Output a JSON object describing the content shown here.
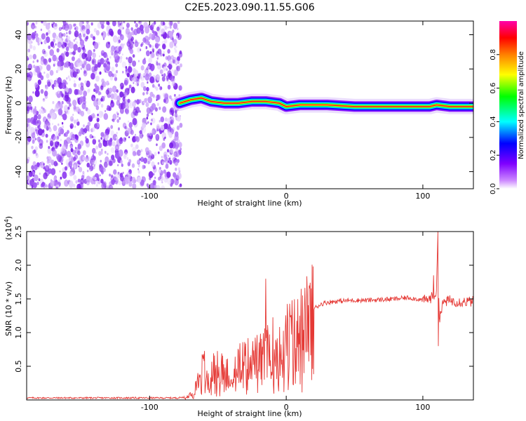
{
  "title": "C2E5.2023.090.11.55.G06",
  "colors": {
    "snr_line": "#e53935",
    "axis": "#000000",
    "noise_scatter": "#8a2be2"
  },
  "chart_data": [
    {
      "type": "heatmap",
      "xlabel": "Height of straight line (km)",
      "ylabel": "Frequency (Hz)",
      "xlim": [
        -190,
        137
      ],
      "ylim": [
        -50,
        48
      ],
      "xticks": [
        -100,
        0,
        100
      ],
      "xtick_labels": [
        "-100",
        "0",
        "100"
      ],
      "yticks": [
        -40,
        -20,
        0,
        20,
        40
      ],
      "ytick_labels": [
        "-40",
        "-20",
        "0",
        "20",
        "40"
      ],
      "noise_region_x": [
        -190,
        -77
      ],
      "signal_track": {
        "x": [
          -78,
          -70,
          -62,
          -55,
          -45,
          -35,
          -25,
          -15,
          -5,
          0,
          10,
          20,
          30,
          50,
          70,
          90,
          105,
          110,
          120,
          137
        ],
        "frequency": [
          0,
          2,
          3,
          1,
          0,
          0,
          1,
          1,
          0,
          -2,
          -1,
          -1,
          -1,
          -2,
          -2,
          -2,
          -2,
          -1,
          -2,
          -2
        ]
      },
      "colorbar": {
        "label": "Normalized spectral amplitude",
        "range": [
          0,
          1
        ],
        "ticks": [
          0.0,
          0.2,
          0.4,
          0.6,
          0.8
        ],
        "tick_labels": [
          "0.0",
          "0.2",
          "0.4",
          "0.6",
          "0.8"
        ],
        "colormap": "hsv"
      }
    },
    {
      "type": "line",
      "xlabel": "Height of straight line (km)",
      "ylabel": "SNR (10 * v/v)",
      "scale_label": "(x10",
      "scale_exponent": "4",
      "xlim": [
        -190,
        137
      ],
      "ylim": [
        0,
        2.5
      ],
      "xticks": [
        -100,
        0,
        100
      ],
      "xtick_labels": [
        "-100",
        "0",
        "100"
      ],
      "yticks": [
        0.5,
        1.0,
        1.5,
        2.0,
        2.5
      ],
      "ytick_labels": [
        "0.5",
        "1.0",
        "1.5",
        "2.0",
        "2.5"
      ],
      "series": [
        {
          "x": [
            -190,
            -160,
            -130,
            -100,
            -80,
            -72,
            -68,
            -65,
            -62,
            -60,
            -55,
            -50,
            -45,
            -40,
            -35,
            -30,
            -25,
            -20,
            -17,
            -15,
            -10,
            -5,
            0,
            5,
            10,
            12,
            15,
            20,
            25,
            30,
            40,
            50,
            60,
            70,
            80,
            85,
            90,
            95,
            100,
            105,
            108,
            110,
            111,
            112,
            115,
            120,
            125,
            130,
            137
          ],
          "y": [
            0.03,
            0.03,
            0.03,
            0.03,
            0.03,
            0.05,
            0.15,
            0.3,
            0.45,
            0.5,
            0.45,
            0.5,
            0.45,
            0.55,
            0.55,
            0.6,
            0.6,
            0.65,
            0.7,
            0.7,
            0.8,
            0.9,
            0.95,
            1.0,
            1.05,
            1.1,
            1.2,
            1.35,
            1.42,
            1.45,
            1.47,
            1.48,
            1.48,
            1.49,
            1.5,
            1.51,
            1.52,
            1.5,
            1.48,
            1.5,
            1.55,
            1.6,
            2.5,
            1.2,
            1.45,
            1.48,
            1.46,
            1.46,
            1.46
          ],
          "spikes": [
            {
              "x": -15,
              "y": 1.8
            },
            {
              "x": 11,
              "y": 1.65
            },
            {
              "x": 108,
              "y": 1.85
            },
            {
              "x": 111,
              "y": 2.5
            },
            {
              "x": 111.5,
              "y": 0.8
            }
          ]
        }
      ]
    }
  ]
}
